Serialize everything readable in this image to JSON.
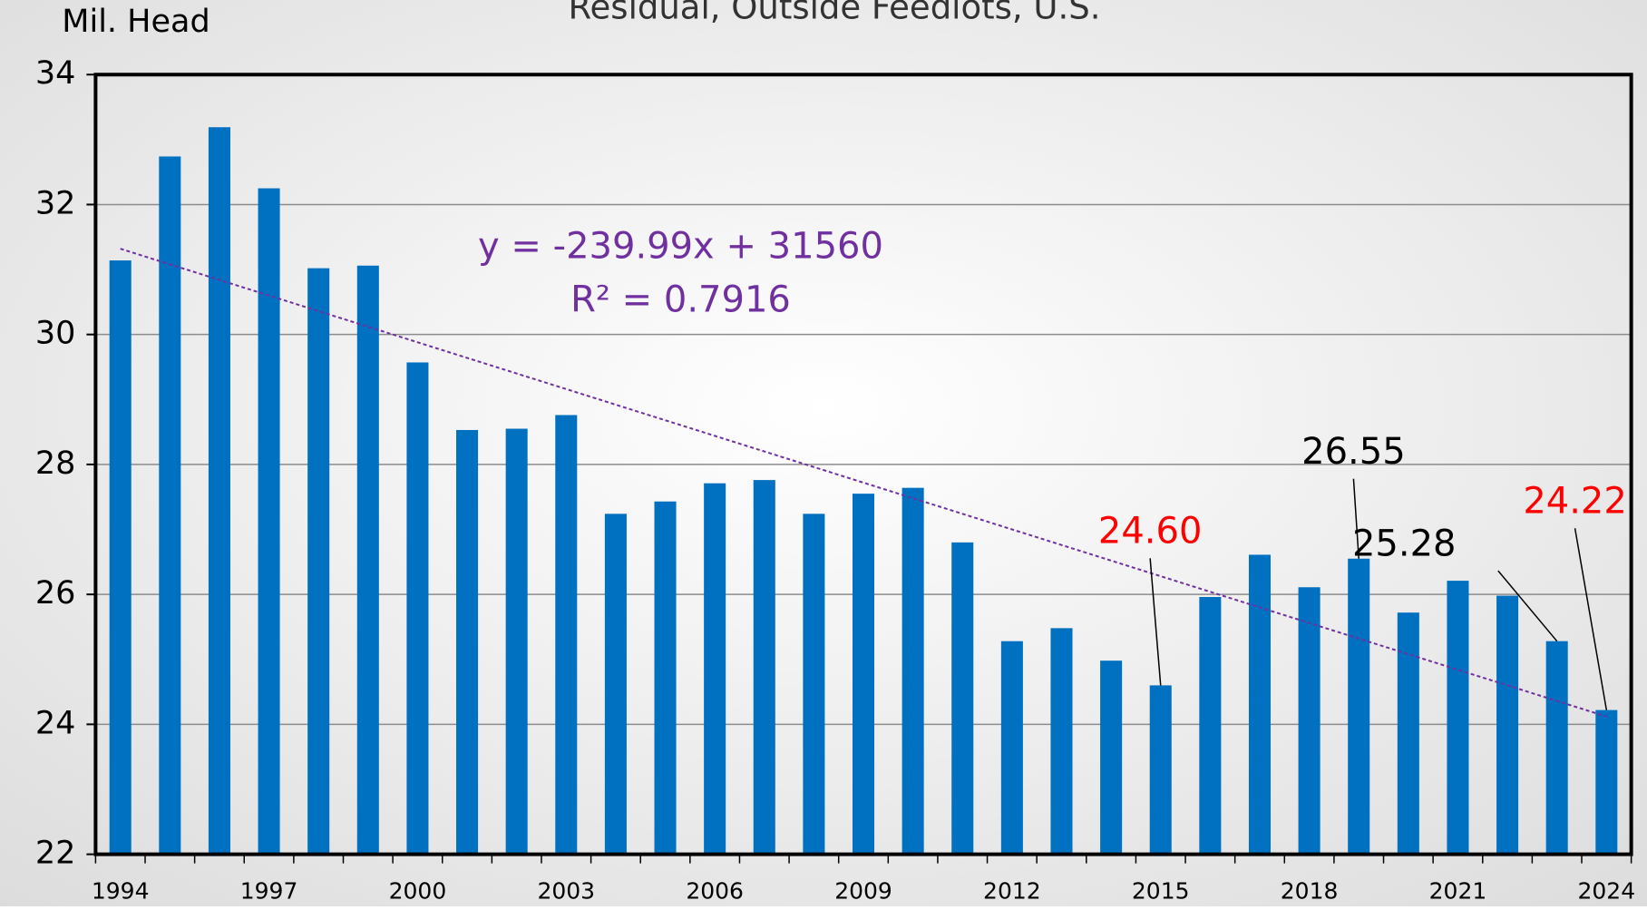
{
  "chart_data": {
    "type": "bar",
    "title": "Residual, Outside Feedlots, U.S.",
    "y_label": "Mil. Head",
    "categories": [
      "1994",
      null,
      null,
      "1997",
      null,
      null,
      "2000",
      null,
      null,
      "2003",
      null,
      null,
      "2006",
      null,
      null,
      "2009",
      null,
      null,
      "2012",
      null,
      null,
      "2015",
      null,
      null,
      "2018",
      null,
      null,
      "2021",
      null,
      null,
      "2024"
    ],
    "values": [
      31.14,
      32.74,
      33.19,
      32.25,
      31.02,
      31.06,
      29.57,
      28.53,
      28.55,
      28.76,
      27.24,
      27.43,
      27.71,
      27.76,
      27.24,
      27.55,
      27.64,
      26.8,
      25.28,
      25.48,
      24.98,
      24.6,
      25.96,
      26.61,
      26.11,
      26.55,
      25.72,
      26.21,
      25.98,
      25.28,
      24.22
    ],
    "value_labels": [
      null,
      null,
      null,
      null,
      null,
      null,
      null,
      null,
      null,
      null,
      null,
      null,
      null,
      null,
      null,
      null,
      null,
      null,
      null,
      null,
      null,
      "24.60",
      null,
      null,
      null,
      "26.55",
      null,
      null,
      null,
      "25.28",
      "24.22"
    ],
    "value_label_colors": [
      null,
      null,
      null,
      null,
      null,
      null,
      null,
      null,
      null,
      null,
      null,
      null,
      null,
      null,
      null,
      null,
      null,
      null,
      null,
      null,
      null,
      "#ff0000",
      null,
      null,
      null,
      "#000000",
      null,
      null,
      null,
      "#000000",
      "#ff0000"
    ],
    "color": "#0070c0",
    "ylim": [
      22,
      34
    ],
    "yticks": [
      22,
      24,
      26,
      28,
      30,
      32,
      34
    ],
    "grid": true,
    "trendline": {
      "equation": "y = -239.99x + 31560",
      "r_squared": "R² = 0.7916",
      "values": [
        31.32,
        24.12
      ],
      "color": "#7030a0"
    }
  }
}
